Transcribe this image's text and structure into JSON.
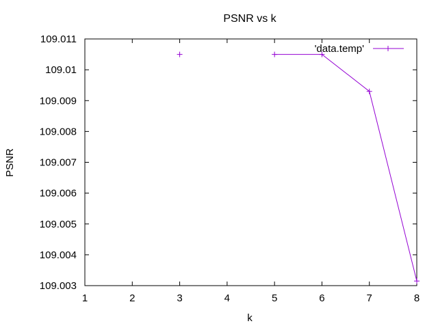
{
  "chart_data": {
    "type": "line",
    "title": "PSNR vs k",
    "xlabel": "k",
    "ylabel": "PSNR",
    "xlim": [
      1,
      8
    ],
    "ylim": [
      109.003,
      109.011
    ],
    "xticks": [
      "1",
      "2",
      "3",
      "4",
      "5",
      "6",
      "7",
      "8"
    ],
    "yticks": [
      "109.003",
      "109.004",
      "109.005",
      "109.006",
      "109.007",
      "109.008",
      "109.009",
      "109.01",
      "109.011"
    ],
    "grid": false,
    "legend_position": "top-right",
    "series": [
      {
        "name": "'data.temp'",
        "color": "#9400d3",
        "segments": [
          [
            {
              "x": 3,
              "y": 109.0105
            }
          ],
          [
            {
              "x": 5,
              "y": 109.0105
            },
            {
              "x": 6,
              "y": 109.0105
            },
            {
              "x": 7,
              "y": 109.0093
            },
            {
              "x": 8,
              "y": 109.00315
            }
          ]
        ]
      }
    ]
  }
}
